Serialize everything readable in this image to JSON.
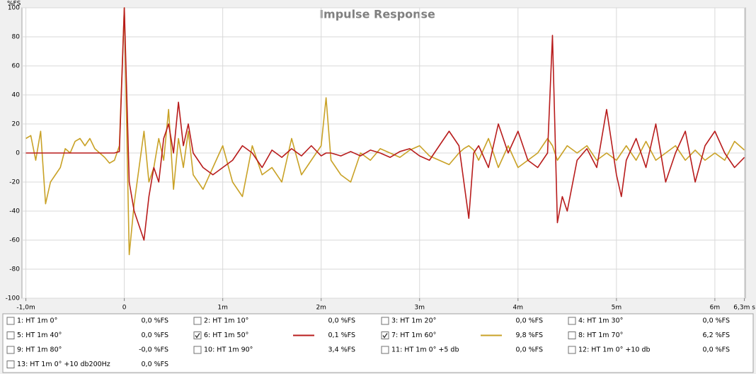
{
  "chart_data": {
    "type": "line",
    "title": "Impulse Response",
    "y_label": "%FS",
    "xlim": [
      -1.04,
      6.31
    ],
    "ylim": [
      -100,
      100
    ],
    "grid": true,
    "xticks": [
      {
        "value": -1,
        "label": "-1,0m"
      },
      0,
      {
        "value": 1,
        "label": "1m"
      },
      {
        "value": 2,
        "label": "2m"
      },
      {
        "value": 3,
        "label": "3m"
      },
      {
        "value": 4,
        "label": "4m"
      },
      {
        "value": 5,
        "label": "5m"
      },
      {
        "value": 6,
        "label": "6m"
      },
      {
        "value": 6.3,
        "label": "6,3m s"
      }
    ],
    "yticks": [
      -100,
      -80,
      -60,
      -40,
      -20,
      0,
      20,
      40,
      60,
      80,
      100
    ],
    "x": [
      -1,
      -0.95,
      -0.9,
      -0.85,
      -0.8,
      -0.75,
      -0.7,
      -0.65,
      -0.6,
      -0.55,
      -0.5,
      -0.45,
      -0.4,
      -0.35,
      -0.3,
      -0.25,
      -0.2,
      -0.15,
      -0.1,
      -0.05,
      0,
      0.05,
      0.1,
      0.15,
      0.2,
      0.25,
      0.3,
      0.35,
      0.4,
      0.45,
      0.5,
      0.55,
      0.6,
      0.65,
      0.7,
      0.8,
      0.9,
      1.0,
      1.1,
      1.2,
      1.3,
      1.4,
      1.5,
      1.6,
      1.7,
      1.8,
      1.9,
      2.0,
      2.05,
      2.1,
      2.2,
      2.3,
      2.4,
      2.5,
      2.6,
      2.7,
      2.8,
      2.9,
      3.0,
      3.1,
      3.2,
      3.3,
      3.4,
      3.45,
      3.5,
      3.55,
      3.6,
      3.7,
      3.8,
      3.9,
      4.0,
      4.1,
      4.2,
      4.3,
      4.35,
      4.4,
      4.45,
      4.5,
      4.6,
      4.7,
      4.8,
      4.9,
      5.0,
      5.05,
      5.1,
      5.2,
      5.3,
      5.4,
      5.5,
      5.6,
      5.7,
      5.8,
      5.9,
      6.0,
      6.1,
      6.2,
      6.3
    ],
    "series": [
      {
        "name": "6: HT 1m 50°",
        "color": "#b81c1c",
        "reading": "0,1 %FS",
        "values": [
          0,
          0,
          0,
          0,
          0,
          0,
          0,
          0,
          0,
          0,
          0,
          0,
          0,
          0,
          0,
          0,
          0,
          0,
          0,
          1,
          100,
          -20,
          -40,
          -50,
          -60,
          -30,
          -10,
          -20,
          10,
          20,
          0,
          35,
          5,
          20,
          0,
          -10,
          -15,
          -10,
          -5,
          5,
          0,
          -10,
          2,
          -3,
          3,
          -2,
          5,
          -2,
          0,
          0,
          -2,
          1,
          -2,
          2,
          0,
          -3,
          1,
          3,
          -2,
          -5,
          5,
          15,
          5,
          -20,
          -45,
          0,
          5,
          -10,
          20,
          0,
          15,
          -5,
          -10,
          0,
          81,
          -48,
          -30,
          -40,
          -5,
          3,
          -10,
          30,
          -15,
          -30,
          -5,
          10,
          -10,
          20,
          -20,
          0,
          15,
          -20,
          5,
          15,
          0,
          -10,
          -3
        ]
      },
      {
        "name": "7: HT 1m 60°",
        "color": "#c9a227",
        "reading": "9,8 %FS",
        "values": [
          10,
          12,
          -5,
          15,
          -35,
          -20,
          -15,
          -10,
          3,
          0,
          8,
          10,
          5,
          10,
          3,
          0,
          -3,
          -7,
          -5,
          5,
          100,
          -70,
          -35,
          -10,
          15,
          -20,
          -10,
          10,
          -5,
          30,
          -25,
          10,
          -10,
          15,
          -15,
          -25,
          -10,
          5,
          -20,
          -30,
          5,
          -15,
          -10,
          -20,
          10,
          -15,
          -5,
          5,
          38,
          -5,
          -15,
          -20,
          0,
          -5,
          3,
          0,
          -3,
          2,
          5,
          -2,
          -5,
          -8,
          0,
          3,
          5,
          2,
          -5,
          10,
          -10,
          5,
          -10,
          -5,
          0,
          10,
          5,
          -5,
          0,
          5,
          0,
          5,
          -5,
          0,
          -5,
          0,
          5,
          -5,
          8,
          -5,
          0,
          5,
          -5,
          2,
          -5,
          0,
          -5,
          8,
          2
        ]
      }
    ]
  },
  "trace_panel": [
    {
      "name": "1: HT 1m 0°",
      "reading": "0,0 %FS",
      "color": "#2a9a2a"
    },
    {
      "name": "2: HT 1m 10°",
      "reading": "0,0 %FS",
      "color": "#c030c0"
    },
    {
      "name": "3: HT 1m 20°",
      "reading": "0,0 %FS",
      "color": "#3090c0"
    },
    {
      "name": "4: HT 1m 30°",
      "reading": "0,0 %FS",
      "color": "#b040b0"
    },
    {
      "name": "5: HT 1m 40°",
      "reading": "0,0 %FS",
      "color": "#2a9a2a"
    },
    {
      "name": "8: HT 1m 70°",
      "reading": "6,2 %FS",
      "color": "#1a3ad0"
    },
    {
      "name": "9: HT 1m 80°",
      "reading": "-0,0 %FS",
      "color": "#c030c0"
    },
    {
      "name": "10: HT 1m 90°",
      "reading": "3,4 %FS",
      "color": "#20a0a0"
    },
    {
      "name": "11: HT 1m 0° +5 db",
      "reading": "0,0 %FS",
      "color": "#c0a030"
    },
    {
      "name": "12: HT 1m 0° +10 db",
      "reading": "0,0 %FS",
      "color": "#b040b0"
    },
    {
      "name": "13: HT 1m 0° +10 db200Hz",
      "reading": "0,0 %FS",
      "color": "#3080b0"
    }
  ]
}
